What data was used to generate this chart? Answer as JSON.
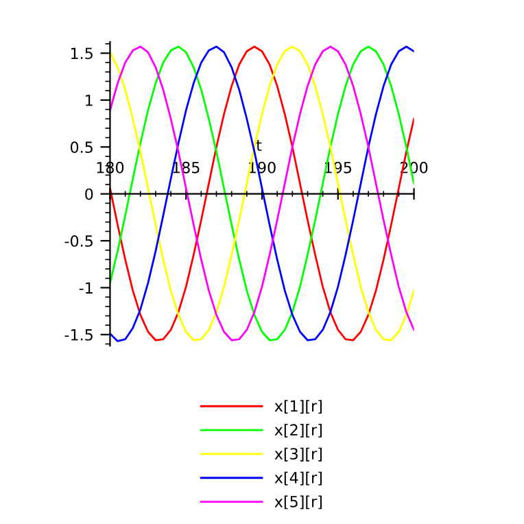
{
  "chart_data": {
    "type": "line",
    "xlabel": "t",
    "x": [
      180,
      180.5,
      181,
      181.5,
      182,
      182.5,
      183,
      183.5,
      184,
      184.5,
      185,
      185.5,
      186,
      186.5,
      187,
      187.5,
      188,
      188.5,
      189,
      189.5,
      190,
      190.5,
      191,
      191.5,
      192,
      192.5,
      193,
      193.5,
      194,
      194.5,
      195,
      195.5,
      196,
      196.5,
      197,
      197.5,
      198,
      198.5,
      199,
      199.5,
      200
    ],
    "series": [
      {
        "name": "x[1][r]",
        "color": "#ff0000",
        "values": [
          0.06,
          -0.33,
          -0.7,
          -1.03,
          -1.29,
          -1.47,
          -1.56,
          -1.55,
          -1.45,
          -1.26,
          -0.99,
          -0.65,
          -0.28,
          0.11,
          0.5,
          0.85,
          1.15,
          1.38,
          1.52,
          1.57,
          1.52,
          1.38,
          1.15,
          0.85,
          0.5,
          0.11,
          -0.28,
          -0.65,
          -0.99,
          -1.26,
          -1.45,
          -1.55,
          -1.56,
          -1.47,
          -1.29,
          -1.03,
          -0.7,
          -0.33,
          0.06,
          0.45,
          0.8
        ]
      },
      {
        "name": "x[2][r]",
        "color": "#00ff00",
        "values": [
          -0.95,
          -0.61,
          -0.23,
          0.16,
          0.54,
          0.89,
          1.18,
          1.4,
          1.53,
          1.57,
          1.51,
          1.35,
          1.11,
          0.8,
          0.45,
          0.06,
          -0.33,
          -0.7,
          -1.03,
          -1.29,
          -1.47,
          -1.56,
          -1.55,
          -1.45,
          -1.26,
          -0.99,
          -0.65,
          -0.28,
          0.11,
          0.5,
          0.85,
          1.15,
          1.38,
          1.52,
          1.57,
          1.52,
          1.38,
          1.15,
          0.85,
          0.5,
          0.11
        ]
      },
      {
        "name": "x[3][r]",
        "color": "#ffff00",
        "values": [
          1.51,
          1.35,
          1.11,
          0.8,
          0.45,
          0.06,
          -0.33,
          -0.7,
          -1.03,
          -1.29,
          -1.47,
          -1.56,
          -1.55,
          -1.45,
          -1.26,
          -0.99,
          -0.65,
          -0.28,
          0.11,
          0.5,
          0.85,
          1.15,
          1.38,
          1.52,
          1.57,
          1.52,
          1.38,
          1.15,
          0.85,
          0.5,
          0.11,
          -0.28,
          -0.65,
          -0.99,
          -1.26,
          -1.45,
          -1.55,
          -1.56,
          -1.47,
          -1.29,
          -1.03
        ]
      },
      {
        "name": "x[4][r]",
        "color": "#0000ff",
        "values": [
          -1.49,
          -1.57,
          -1.55,
          -1.43,
          -1.23,
          -0.95,
          -0.61,
          -0.23,
          0.16,
          0.54,
          0.89,
          1.18,
          1.4,
          1.53,
          1.57,
          1.51,
          1.35,
          1.11,
          0.8,
          0.45,
          0.06,
          -0.33,
          -0.7,
          -1.03,
          -1.29,
          -1.47,
          -1.56,
          -1.55,
          -1.45,
          -1.26,
          -0.99,
          -0.65,
          -0.28,
          0.11,
          0.5,
          0.85,
          1.15,
          1.38,
          1.52,
          1.57,
          1.52
        ]
      },
      {
        "name": "x[5][r]",
        "color": "#ff00ff",
        "values": [
          0.89,
          1.18,
          1.4,
          1.53,
          1.57,
          1.51,
          1.35,
          1.11,
          0.8,
          0.45,
          0.06,
          -0.33,
          -0.7,
          -1.03,
          -1.29,
          -1.47,
          -1.56,
          -1.55,
          -1.45,
          -1.26,
          -0.99,
          -0.65,
          -0.28,
          0.11,
          0.5,
          0.85,
          1.15,
          1.38,
          1.52,
          1.57,
          1.52,
          1.38,
          1.15,
          0.85,
          0.5,
          0.11,
          -0.28,
          -0.65,
          -0.99,
          -1.26,
          -1.45
        ]
      }
    ],
    "xlim": [
      180,
      200
    ],
    "ylim": [
      -1.62,
      1.62
    ],
    "xticks": [
      180,
      185,
      190,
      195,
      200
    ],
    "yticks": [
      -1.5,
      -1,
      -0.5,
      0,
      0.5,
      1,
      1.5
    ],
    "grid": false,
    "legend": "bottom",
    "marker": "none",
    "line_style": "solid"
  }
}
